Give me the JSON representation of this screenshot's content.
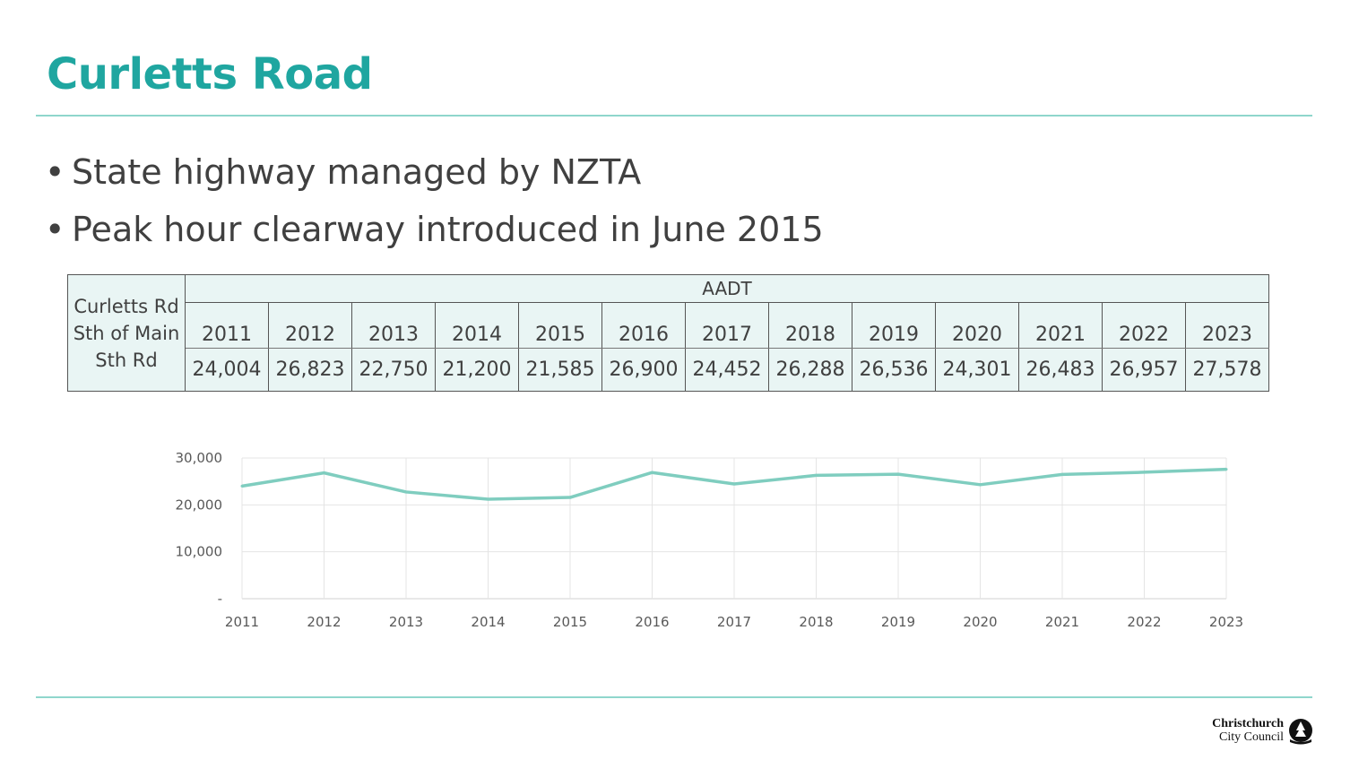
{
  "header": {
    "title": "Curletts Road"
  },
  "bullets": [
    "State highway managed by NZTA",
    "Peak hour clearway introduced in June 2015"
  ],
  "table": {
    "row_label_lines": [
      "Curletts Rd",
      "Sth of Main",
      "Sth Rd"
    ],
    "group_header": "AADT",
    "years": [
      "2011",
      "2012",
      "2013",
      "2014",
      "2015",
      "2016",
      "2017",
      "2018",
      "2019",
      "2020",
      "2021",
      "2022",
      "2023"
    ],
    "values": [
      "24,004",
      "26,823",
      "22,750",
      "21,200",
      "21,585",
      "26,900",
      "24,452",
      "26,288",
      "26,536",
      "24,301",
      "26,483",
      "26,957",
      "27,578"
    ]
  },
  "chart_data": {
    "type": "line",
    "categories": [
      "2011",
      "2012",
      "2013",
      "2014",
      "2015",
      "2016",
      "2017",
      "2018",
      "2019",
      "2020",
      "2021",
      "2022",
      "2023"
    ],
    "series": [
      {
        "values": [
          24004,
          26823,
          22750,
          21200,
          21585,
          26900,
          24452,
          26288,
          26536,
          24301,
          26483,
          26957,
          27578
        ],
        "color": "#7fcdbf"
      }
    ],
    "yticks": [
      0,
      10000,
      20000,
      30000
    ],
    "ytick_labels": [
      "-",
      "10,000",
      "20,000",
      "30,000"
    ],
    "ylim": [
      0,
      30000
    ],
    "grid": true,
    "legend": "none",
    "title": "",
    "xlabel": "",
    "ylabel": ""
  },
  "logo": {
    "line1": "Christchurch",
    "line2": "City Council",
    "icon": "tree-icon"
  },
  "colors": {
    "accent": "#1fa6a0",
    "rule": "#8fd6cc",
    "table_fill": "#e9f5f4",
    "line": "#7fcdbf"
  }
}
